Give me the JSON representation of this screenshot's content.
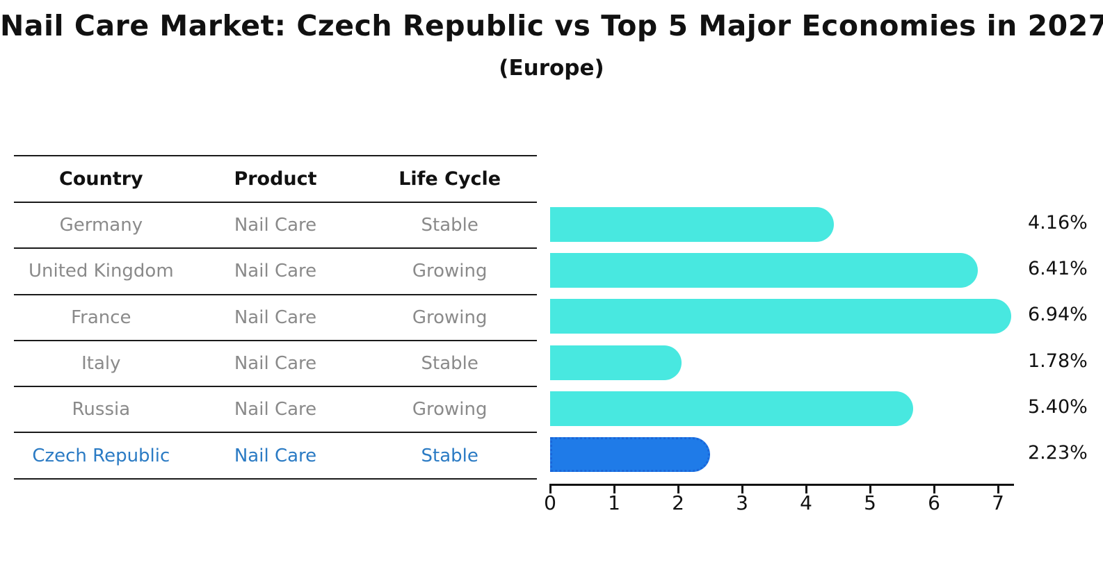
{
  "title": "Nail Care Market: Czech Republic vs Top 5 Major Economies in 2027",
  "subtitle": "(Europe)",
  "table": {
    "headers": [
      "Country",
      "Product",
      "Life Cycle"
    ],
    "rows": [
      {
        "country": "Germany",
        "product": "Nail Care",
        "life_cycle": "Stable",
        "highlight": false
      },
      {
        "country": "United Kingdom",
        "product": "Nail Care",
        "life_cycle": "Growing",
        "highlight": false
      },
      {
        "country": "France",
        "product": "Nail Care",
        "life_cycle": "Growing",
        "highlight": false
      },
      {
        "country": "Italy",
        "product": "Nail Care",
        "life_cycle": "Stable",
        "highlight": false
      },
      {
        "country": "Russia",
        "product": "Nail Care",
        "life_cycle": "Growing",
        "highlight": false
      },
      {
        "country": "Czech Republic",
        "product": "Nail Care",
        "life_cycle": "Stable",
        "highlight": true
      }
    ]
  },
  "chart_data": {
    "type": "bar",
    "orientation": "horizontal",
    "title": "Nail Care Market: Czech Republic vs Top 5 Major Economies in 2027",
    "subtitle": "(Europe)",
    "categories": [
      "Germany",
      "United Kingdom",
      "France",
      "Italy",
      "Russia",
      "Czech Republic"
    ],
    "values": [
      4.16,
      6.41,
      6.94,
      1.78,
      5.4,
      2.23
    ],
    "value_labels": [
      "4.16%",
      "6.41%",
      "6.94%",
      "1.78%",
      "5.40%",
      "2.23%"
    ],
    "highlight_index": 5,
    "xlabel": "",
    "ylabel": "",
    "xlim": [
      0,
      7.4
    ],
    "x_ticks": [
      0,
      1,
      2,
      3,
      4,
      5,
      6,
      7
    ],
    "grid": false,
    "legend": false,
    "bar_color": "#48E8E0",
    "highlight_bar_color": "#1F7BE8",
    "highlight_border_color": "#1A66D9",
    "highlight_text_color": "#2B7BC4",
    "row_text_color": "#8A8A8A"
  }
}
